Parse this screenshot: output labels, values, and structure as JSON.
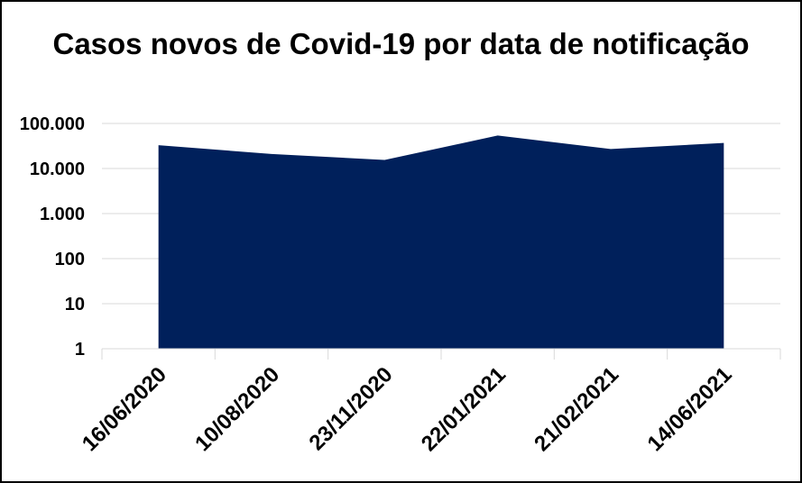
{
  "chart_data": {
    "type": "area",
    "title": "Casos novos de Covid-19 por data de notificação",
    "xlabel": "",
    "ylabel": "",
    "y_scale": "log",
    "ylim": [
      1,
      100000
    ],
    "y_ticks": [
      1,
      10,
      100,
      1000,
      10000,
      100000
    ],
    "y_tick_labels": [
      "1",
      "10",
      "100",
      "1.000",
      "10.000",
      "100.000"
    ],
    "x": [
      "16/06/2020",
      "10/08/2020",
      "23/11/2020",
      "22/01/2021",
      "21/02/2021",
      "14/06/2021"
    ],
    "series": [
      {
        "values": [
          33000,
          21000,
          15500,
          54000,
          27000,
          37000
        ]
      }
    ],
    "grid": true,
    "legend": "none",
    "colors": {
      "area": "#00205B",
      "grid": "#D9D9D9",
      "axis": "#D9D9D9",
      "frame": "#000000",
      "text": "#000000"
    }
  }
}
